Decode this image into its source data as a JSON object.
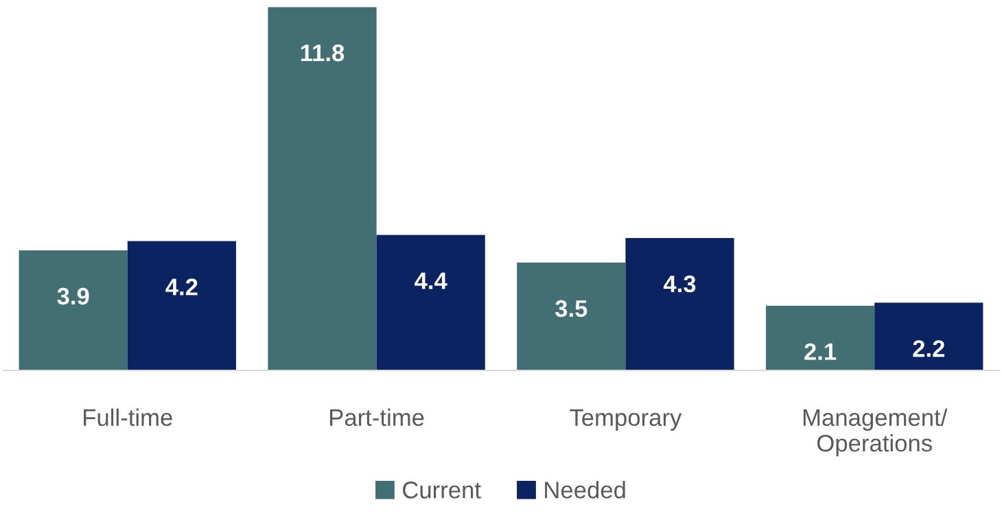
{
  "chart_data": {
    "type": "bar",
    "categories": [
      "Full-time",
      "Part-time",
      "Temporary",
      "Management/\nOperations"
    ],
    "series": [
      {
        "name": "Current",
        "color": "#416f73",
        "values": [
          3.9,
          11.8,
          3.5,
          2.1
        ]
      },
      {
        "name": "Needed",
        "color": "#0b2360",
        "values": [
          4.2,
          4.4,
          4.3,
          2.2
        ]
      }
    ],
    "ylim": [
      0,
      11.8
    ],
    "tick_labels": "x",
    "data_labels": true,
    "grid": false,
    "legend": "bottom"
  }
}
